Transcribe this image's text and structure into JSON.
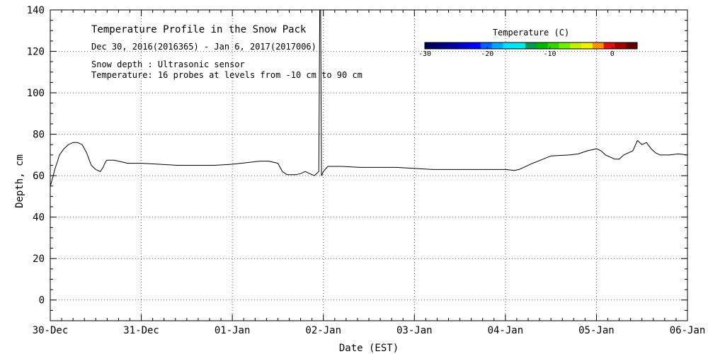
{
  "chart_data": {
    "type": "line",
    "title": "Temperature Profile in the Snow Pack",
    "subtitle": "Dec 30, 2016(2016365) - Jan  6, 2017(2017006)",
    "annotations": [
      "Snow depth : Ultrasonic sensor",
      "Temperature: 16 probes at levels from -10 cm to 90 cm"
    ],
    "xlabel": "Date (EST)",
    "ylabel": "Depth, cm",
    "xlim": [
      0,
      7
    ],
    "ylim": [
      -10,
      140
    ],
    "grid": true,
    "x_ticks": [
      {
        "v": 0,
        "label": "30-Dec"
      },
      {
        "v": 1,
        "label": "31-Dec"
      },
      {
        "v": 2,
        "label": "01-Jan"
      },
      {
        "v": 3,
        "label": "02-Jan"
      },
      {
        "v": 4,
        "label": "03-Jan"
      },
      {
        "v": 5,
        "label": "04-Jan"
      },
      {
        "v": 6,
        "label": "05-Jan"
      },
      {
        "v": 7,
        "label": "06-Jan"
      }
    ],
    "y_ticks": [
      0,
      20,
      40,
      60,
      80,
      100,
      120,
      140
    ],
    "series": [
      {
        "name": "Snow depth",
        "x": [
          0,
          0.02,
          0.05,
          0.08,
          0.1,
          0.15,
          0.2,
          0.25,
          0.3,
          0.35,
          0.4,
          0.45,
          0.5,
          0.55,
          0.58,
          0.6,
          0.62,
          0.7,
          0.75,
          0.8,
          0.85,
          1.0,
          1.2,
          1.4,
          1.6,
          1.8,
          2.0,
          2.2,
          2.3,
          2.4,
          2.5,
          2.55,
          2.6,
          2.7,
          2.75,
          2.8,
          2.85,
          2.9,
          2.95,
          2.96,
          2.97,
          2.98,
          3.0,
          3.05,
          3.2,
          3.4,
          3.6,
          3.8,
          4.0,
          4.2,
          4.4,
          4.6,
          4.8,
          5.0,
          5.1,
          5.15,
          5.2,
          5.3,
          5.5,
          5.7,
          5.8,
          5.9,
          6.0,
          6.05,
          6.1,
          6.2,
          6.25,
          6.3,
          6.4,
          6.45,
          6.5,
          6.55,
          6.6,
          6.65,
          6.7,
          6.8,
          6.9,
          7.0
        ],
        "values": [
          55,
          58,
          63,
          67,
          70,
          73,
          75,
          76,
          76,
          75,
          71,
          65,
          63,
          62,
          64,
          66,
          67.5,
          67.5,
          67,
          66.5,
          66,
          66,
          65.5,
          65,
          65,
          65,
          65.5,
          66.5,
          67,
          67,
          66,
          62,
          60.5,
          60.5,
          61,
          62,
          61,
          60,
          62,
          140,
          140,
          60,
          62,
          64.5,
          64.5,
          64,
          64,
          64,
          63.5,
          63,
          63,
          63,
          63,
          63,
          62.5,
          63,
          64,
          66,
          69.5,
          70,
          70.5,
          72,
          73,
          72,
          70,
          68,
          68,
          70,
          72,
          77,
          75,
          76,
          73,
          71,
          70,
          70,
          70.5,
          70
        ]
      }
    ],
    "colorbar": {
      "title": "Temperature (C)",
      "min": -30,
      "max": 4,
      "tick_labels": [
        {
          "v": -30,
          "label": "-30"
        },
        {
          "v": -20,
          "label": "-20"
        },
        {
          "v": -10,
          "label": "-10"
        },
        {
          "v": 0,
          "label": "0"
        }
      ],
      "colors": [
        "#00005c",
        "#00007a",
        "#00009e",
        "#0000d0",
        "#0000ff",
        "#0060ff",
        "#00a8ff",
        "#00e0ff",
        "#00e8e8",
        "#009a50",
        "#00b800",
        "#30d800",
        "#70f000",
        "#c0f000",
        "#f0f000",
        "#ff9000",
        "#e01010",
        "#a00000",
        "#600000"
      ]
    }
  }
}
